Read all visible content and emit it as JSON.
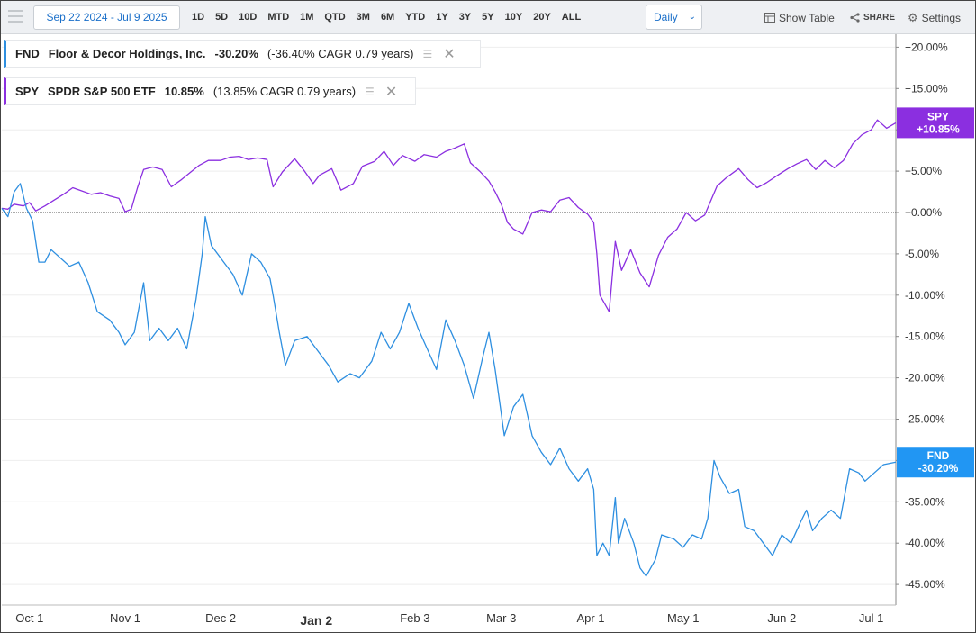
{
  "toolbar": {
    "date_range": "Sep 22 2024 - Jul 9 2025",
    "ranges": [
      "1D",
      "5D",
      "10D",
      "MTD",
      "1M",
      "QTD",
      "3M",
      "6M",
      "YTD",
      "1Y",
      "3Y",
      "5Y",
      "10Y",
      "20Y",
      "ALL"
    ],
    "interval": "Daily",
    "show_table": "Show Table",
    "share": "SHARE",
    "settings": "Settings"
  },
  "legend": [
    {
      "ticker": "FND",
      "name": "Floor & Decor Holdings, Inc.",
      "change": "-30.20%",
      "cagr": "(-36.40% CAGR 0.79 years)",
      "color": "#2e8fe0"
    },
    {
      "ticker": "SPY",
      "name": "SPDR S&P 500 ETF",
      "change": "10.85%",
      "cagr": "(13.85% CAGR 0.79 years)",
      "color": "#8b2fe0"
    }
  ],
  "tags": {
    "spy": {
      "ticker": "SPY",
      "value": "+10.85%",
      "color": "#8b2fe0"
    },
    "fnd": {
      "ticker": "FND",
      "value": "-30.20%",
      "color": "#2196f3"
    }
  },
  "chart_data": {
    "type": "line",
    "x_ticks": [
      "Oct 1",
      "Nov 1",
      "Dec 2",
      "Jan 2",
      "Feb 3",
      "Mar 3",
      "Apr 1",
      "May 1",
      "Jun 2",
      "Jul 1"
    ],
    "y_ticks": [
      "+20.00%",
      "+15.00%",
      "+10.00%",
      "+5.00%",
      "+0.00%",
      "-5.00%",
      "-10.00%",
      "-15.00%",
      "-20.00%",
      "-25.00%",
      "-30.00%",
      "-35.00%",
      "-40.00%",
      "-45.00%"
    ],
    "ylim": [
      -47,
      22
    ],
    "xlim": [
      "2024-09-22",
      "2025-07-09"
    ],
    "zero_line": true,
    "series": [
      {
        "name": "SPY",
        "color": "#8b2fe0",
        "values": [
          [
            "2024-09-22",
            0.5
          ],
          [
            "2024-09-24",
            0.4
          ],
          [
            "2024-09-26",
            1.0
          ],
          [
            "2024-09-29",
            0.8
          ],
          [
            "2024-10-01",
            1.2
          ],
          [
            "2024-10-03",
            0.2
          ],
          [
            "2024-10-06",
            0.8
          ],
          [
            "2024-10-09",
            1.5
          ],
          [
            "2024-10-12",
            2.2
          ],
          [
            "2024-10-15",
            3.0
          ],
          [
            "2024-10-18",
            2.6
          ],
          [
            "2024-10-21",
            2.2
          ],
          [
            "2024-10-24",
            2.4
          ],
          [
            "2024-10-27",
            2.0
          ],
          [
            "2024-10-30",
            1.7
          ],
          [
            "2024-11-01",
            0.1
          ],
          [
            "2024-11-03",
            0.4
          ],
          [
            "2024-11-05",
            3.0
          ],
          [
            "2024-11-07",
            5.2
          ],
          [
            "2024-11-10",
            5.5
          ],
          [
            "2024-11-13",
            5.2
          ],
          [
            "2024-11-16",
            3.1
          ],
          [
            "2024-11-19",
            3.9
          ],
          [
            "2024-11-22",
            4.8
          ],
          [
            "2024-11-25",
            5.7
          ],
          [
            "2024-11-28",
            6.3
          ],
          [
            "2024-12-02",
            6.3
          ],
          [
            "2024-12-05",
            6.7
          ],
          [
            "2024-12-08",
            6.8
          ],
          [
            "2024-12-11",
            6.4
          ],
          [
            "2024-12-14",
            6.6
          ],
          [
            "2024-12-17",
            6.4
          ],
          [
            "2024-12-19",
            3.1
          ],
          [
            "2024-12-22",
            4.9
          ],
          [
            "2024-12-26",
            6.5
          ],
          [
            "2024-12-29",
            5.1
          ],
          [
            "2025-01-01",
            3.5
          ],
          [
            "2025-01-03",
            4.5
          ],
          [
            "2025-01-07",
            5.3
          ],
          [
            "2025-01-10",
            2.7
          ],
          [
            "2025-01-14",
            3.5
          ],
          [
            "2025-01-17",
            5.6
          ],
          [
            "2025-01-21",
            6.2
          ],
          [
            "2025-01-24",
            7.4
          ],
          [
            "2025-01-27",
            5.7
          ],
          [
            "2025-01-30",
            6.9
          ],
          [
            "2025-02-03",
            6.2
          ],
          [
            "2025-02-06",
            7.0
          ],
          [
            "2025-02-10",
            6.7
          ],
          [
            "2025-02-13",
            7.4
          ],
          [
            "2025-02-16",
            7.8
          ],
          [
            "2025-02-19",
            8.3
          ],
          [
            "2025-02-21",
            6.0
          ],
          [
            "2025-02-24",
            5.0
          ],
          [
            "2025-02-27",
            3.8
          ],
          [
            "2025-03-01",
            2.5
          ],
          [
            "2025-03-03",
            1.0
          ],
          [
            "2025-03-05",
            -1.2
          ],
          [
            "2025-03-07",
            -2.0
          ],
          [
            "2025-03-10",
            -2.6
          ],
          [
            "2025-03-13",
            0.0
          ],
          [
            "2025-03-16",
            0.3
          ],
          [
            "2025-03-19",
            0.1
          ],
          [
            "2025-03-22",
            1.5
          ],
          [
            "2025-03-25",
            1.8
          ],
          [
            "2025-03-28",
            0.6
          ],
          [
            "2025-03-31",
            -0.2
          ],
          [
            "2025-04-02",
            -1.2
          ],
          [
            "2025-04-03",
            -5.0
          ],
          [
            "2025-04-04",
            -10.0
          ],
          [
            "2025-04-07",
            -12.0
          ],
          [
            "2025-04-09",
            -3.5
          ],
          [
            "2025-04-11",
            -7.0
          ],
          [
            "2025-04-14",
            -4.5
          ],
          [
            "2025-04-17",
            -7.3
          ],
          [
            "2025-04-20",
            -9.0
          ],
          [
            "2025-04-23",
            -5.2
          ],
          [
            "2025-04-26",
            -3.0
          ],
          [
            "2025-04-29",
            -2.0
          ],
          [
            "2025-05-02",
            0.0
          ],
          [
            "2025-05-05",
            -1.0
          ],
          [
            "2025-05-08",
            -0.3
          ],
          [
            "2025-05-12",
            3.2
          ],
          [
            "2025-05-15",
            4.2
          ],
          [
            "2025-05-19",
            5.3
          ],
          [
            "2025-05-22",
            4.0
          ],
          [
            "2025-05-25",
            3.0
          ],
          [
            "2025-05-28",
            3.6
          ],
          [
            "2025-06-01",
            4.6
          ],
          [
            "2025-06-04",
            5.3
          ],
          [
            "2025-06-07",
            5.9
          ],
          [
            "2025-06-10",
            6.4
          ],
          [
            "2025-06-13",
            5.2
          ],
          [
            "2025-06-16",
            6.3
          ],
          [
            "2025-06-19",
            5.4
          ],
          [
            "2025-06-22",
            6.3
          ],
          [
            "2025-06-25",
            8.3
          ],
          [
            "2025-06-28",
            9.4
          ],
          [
            "2025-07-01",
            10.0
          ],
          [
            "2025-07-03",
            11.2
          ],
          [
            "2025-07-06",
            10.2
          ],
          [
            "2025-07-09",
            10.85
          ]
        ]
      },
      {
        "name": "FND",
        "color": "#2e8fe0",
        "values": [
          [
            "2024-09-22",
            0.5
          ],
          [
            "2024-09-24",
            -0.5
          ],
          [
            "2024-09-26",
            2.5
          ],
          [
            "2024-09-28",
            3.5
          ],
          [
            "2024-09-30",
            0.5
          ],
          [
            "2024-10-02",
            -1.0
          ],
          [
            "2024-10-04",
            -6.0
          ],
          [
            "2024-10-06",
            -6.0
          ],
          [
            "2024-10-08",
            -4.5
          ],
          [
            "2024-10-11",
            -5.5
          ],
          [
            "2024-10-14",
            -6.5
          ],
          [
            "2024-10-17",
            -6.0
          ],
          [
            "2024-10-20",
            -8.5
          ],
          [
            "2024-10-23",
            -12.0
          ],
          [
            "2024-10-27",
            -13.0
          ],
          [
            "2024-10-30",
            -14.5
          ],
          [
            "2024-11-01",
            -16.0
          ],
          [
            "2024-11-04",
            -14.5
          ],
          [
            "2024-11-07",
            -8.5
          ],
          [
            "2024-11-09",
            -15.5
          ],
          [
            "2024-11-12",
            -14.0
          ],
          [
            "2024-11-15",
            -15.5
          ],
          [
            "2024-11-18",
            -14.0
          ],
          [
            "2024-11-21",
            -16.5
          ],
          [
            "2024-11-24",
            -10.5
          ],
          [
            "2024-11-26",
            -5.0
          ],
          [
            "2024-11-27",
            -0.5
          ],
          [
            "2024-11-29",
            -4.0
          ],
          [
            "2024-12-03",
            -6.0
          ],
          [
            "2024-12-06",
            -7.5
          ],
          [
            "2024-12-09",
            -10.0
          ],
          [
            "2024-12-12",
            -5.0
          ],
          [
            "2024-12-15",
            -6.0
          ],
          [
            "2024-12-18",
            -8.0
          ],
          [
            "2024-12-19",
            -10.0
          ],
          [
            "2024-12-21",
            -14.5
          ],
          [
            "2024-12-23",
            -18.5
          ],
          [
            "2024-12-26",
            -15.5
          ],
          [
            "2024-12-30",
            -15.0
          ],
          [
            "2025-01-02",
            -16.5
          ],
          [
            "2025-01-06",
            -18.5
          ],
          [
            "2025-01-09",
            -20.5
          ],
          [
            "2025-01-13",
            -19.5
          ],
          [
            "2025-01-16",
            -20.0
          ],
          [
            "2025-01-20",
            -18.0
          ],
          [
            "2025-01-23",
            -14.5
          ],
          [
            "2025-01-26",
            -16.5
          ],
          [
            "2025-01-29",
            -14.5
          ],
          [
            "2025-02-01",
            -11.0
          ],
          [
            "2025-02-04",
            -14.0
          ],
          [
            "2025-02-07",
            -16.5
          ],
          [
            "2025-02-10",
            -19.0
          ],
          [
            "2025-02-13",
            -13.0
          ],
          [
            "2025-02-16",
            -15.5
          ],
          [
            "2025-02-19",
            -18.5
          ],
          [
            "2025-02-22",
            -22.5
          ],
          [
            "2025-02-25",
            -17.5
          ],
          [
            "2025-02-27",
            -14.5
          ],
          [
            "2025-03-01",
            -19.0
          ],
          [
            "2025-03-04",
            -27.0
          ],
          [
            "2025-03-07",
            -23.5
          ],
          [
            "2025-03-10",
            -22.0
          ],
          [
            "2025-03-13",
            -27.0
          ],
          [
            "2025-03-16",
            -29.0
          ],
          [
            "2025-03-19",
            -30.5
          ],
          [
            "2025-03-22",
            -28.5
          ],
          [
            "2025-03-25",
            -31.0
          ],
          [
            "2025-03-28",
            -32.5
          ],
          [
            "2025-03-31",
            -31.0
          ],
          [
            "2025-04-02",
            -33.5
          ],
          [
            "2025-04-03",
            -41.5
          ],
          [
            "2025-04-05",
            -40.0
          ],
          [
            "2025-04-07",
            -41.5
          ],
          [
            "2025-04-09",
            -34.5
          ],
          [
            "2025-04-10",
            -40.0
          ],
          [
            "2025-04-12",
            -37.0
          ],
          [
            "2025-04-15",
            -40.0
          ],
          [
            "2025-04-17",
            -43.0
          ],
          [
            "2025-04-19",
            -44.0
          ],
          [
            "2025-04-22",
            -42.0
          ],
          [
            "2025-04-24",
            -39.0
          ],
          [
            "2025-04-28",
            -39.5
          ],
          [
            "2025-05-01",
            -40.5
          ],
          [
            "2025-05-04",
            -39.0
          ],
          [
            "2025-05-07",
            -39.5
          ],
          [
            "2025-05-09",
            -37.0
          ],
          [
            "2025-05-11",
            -30.0
          ],
          [
            "2025-05-13",
            -32.0
          ],
          [
            "2025-05-16",
            -34.0
          ],
          [
            "2025-05-19",
            -33.5
          ],
          [
            "2025-05-21",
            -38.0
          ],
          [
            "2025-05-24",
            -38.5
          ],
          [
            "2025-05-27",
            -40.0
          ],
          [
            "2025-05-30",
            -41.5
          ],
          [
            "2025-06-02",
            -39.0
          ],
          [
            "2025-06-05",
            -40.0
          ],
          [
            "2025-06-08",
            -37.5
          ],
          [
            "2025-06-10",
            -36.0
          ],
          [
            "2025-06-12",
            -38.5
          ],
          [
            "2025-06-15",
            -37.0
          ],
          [
            "2025-06-18",
            -36.0
          ],
          [
            "2025-06-21",
            -37.0
          ],
          [
            "2025-06-24",
            -31.0
          ],
          [
            "2025-06-27",
            -31.5
          ],
          [
            "2025-06-29",
            -32.5
          ],
          [
            "2025-07-02",
            -31.5
          ],
          [
            "2025-07-05",
            -30.5
          ],
          [
            "2025-07-09",
            -30.2
          ]
        ]
      }
    ]
  }
}
